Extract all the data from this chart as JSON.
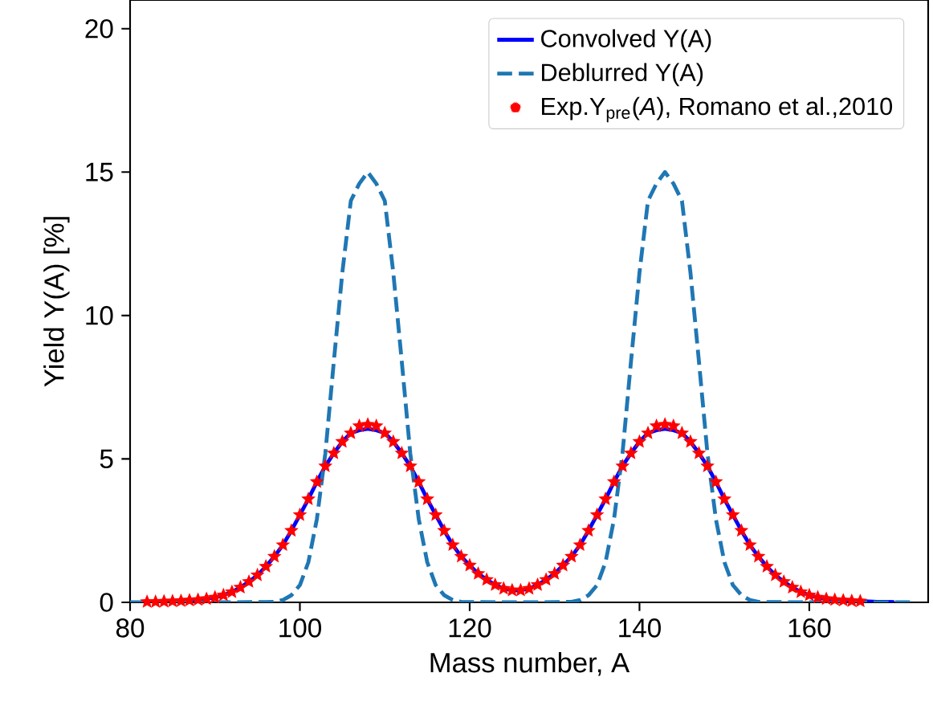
{
  "chart_data": {
    "type": "line",
    "xlabel": "Mass number, A",
    "ylabel": "Yield Y(A) [%]",
    "xlim": [
      80,
      174
    ],
    "ylim": [
      0,
      21
    ],
    "xticks": [
      80,
      100,
      120,
      140,
      160
    ],
    "yticks": [
      0,
      5,
      10,
      15,
      20
    ],
    "legend": "top right",
    "series": [
      {
        "name": "Convolved Y(A)",
        "color": "#0000ff",
        "line_style": "solid",
        "marker": "none",
        "x": [
          86,
          87,
          88,
          89,
          90,
          91,
          92,
          93,
          94,
          95,
          96,
          97,
          98,
          99,
          100,
          101,
          102,
          103,
          104,
          105,
          106,
          107,
          108,
          109,
          110,
          111,
          112,
          113,
          114,
          115,
          116,
          117,
          118,
          119,
          120,
          121,
          122,
          123,
          124,
          125,
          126,
          127,
          128,
          129,
          130,
          131,
          132,
          133,
          134,
          135,
          136,
          137,
          138,
          139,
          140,
          141,
          142,
          143,
          144,
          145,
          146,
          147,
          148,
          149,
          150,
          151,
          152,
          153,
          154,
          155,
          156,
          157,
          158,
          159,
          160,
          161,
          162,
          163,
          164,
          165,
          166,
          167,
          168,
          169,
          170
        ],
        "values": [
          0.05,
          0.07,
          0.09,
          0.12,
          0.17,
          0.25,
          0.36,
          0.52,
          0.72,
          0.95,
          1.25,
          1.6,
          2.0,
          2.5,
          3.05,
          3.6,
          4.2,
          4.75,
          5.2,
          5.6,
          5.9,
          6.0,
          6.05,
          6.0,
          5.9,
          5.6,
          5.2,
          4.75,
          4.2,
          3.6,
          3.05,
          2.5,
          2.0,
          1.6,
          1.29,
          1.0,
          0.79,
          0.61,
          0.48,
          0.42,
          0.42,
          0.48,
          0.61,
          0.79,
          1.0,
          1.29,
          1.6,
          2.0,
          2.5,
          3.05,
          3.6,
          4.2,
          4.75,
          5.2,
          5.6,
          5.9,
          6.0,
          6.05,
          6.0,
          5.9,
          5.6,
          5.2,
          4.75,
          4.2,
          3.6,
          3.05,
          2.5,
          2.0,
          1.6,
          1.25,
          0.95,
          0.72,
          0.52,
          0.36,
          0.25,
          0.17,
          0.12,
          0.09,
          0.07,
          0.05,
          0.04,
          0.03,
          0.02,
          0.02,
          0.01
        ]
      },
      {
        "name": "Deblurred Y(A)",
        "color": "#1f77b4",
        "line_style": "dashed",
        "marker": "none",
        "x": [
          80,
          90,
          96,
          97,
          98,
          99,
          100,
          101,
          102,
          103,
          104,
          105,
          106,
          107,
          108,
          109,
          110,
          111,
          112,
          113,
          114,
          115,
          116,
          117,
          118,
          119,
          120,
          125,
          131,
          132,
          133,
          134,
          135,
          136,
          137,
          138,
          139,
          140,
          141,
          142,
          143,
          144,
          145,
          146,
          147,
          148,
          149,
          150,
          151,
          152,
          153,
          154,
          155,
          160,
          172
        ],
        "values": [
          0,
          0,
          0.01,
          0.02,
          0.08,
          0.25,
          0.6,
          1.4,
          2.9,
          5.2,
          8.4,
          11.5,
          14.0,
          14.6,
          15,
          14.6,
          14.0,
          11.5,
          8.4,
          5.2,
          2.9,
          1.4,
          0.6,
          0.25,
          0.08,
          0.02,
          0.01,
          0,
          0.01,
          0.02,
          0.08,
          0.25,
          0.6,
          1.4,
          2.9,
          5.2,
          8.4,
          11.5,
          14.0,
          14.6,
          15,
          14.6,
          14.0,
          11.5,
          8.4,
          5.2,
          2.9,
          1.4,
          0.6,
          0.25,
          0.08,
          0.02,
          0.01,
          0,
          0
        ]
      },
      {
        "name": "Exp.Y$_{pre}$(*A*), Romano et al.,2010",
        "type": "scatter",
        "color": "#ff0000",
        "marker": "star",
        "x": [
          82,
          83,
          84,
          85,
          86,
          87,
          88,
          89,
          90,
          91,
          92,
          93,
          94,
          95,
          96,
          97,
          98,
          99,
          100,
          101,
          102,
          103,
          104,
          105,
          106,
          107,
          108,
          109,
          110,
          111,
          112,
          113,
          114,
          115,
          116,
          117,
          118,
          119,
          120,
          121,
          122,
          123,
          124,
          125,
          126,
          127,
          128,
          129,
          130,
          131,
          132,
          133,
          134,
          135,
          136,
          137,
          138,
          139,
          140,
          141,
          142,
          143,
          144,
          145,
          146,
          147,
          148,
          149,
          150,
          151,
          152,
          153,
          154,
          155,
          156,
          157,
          158,
          159,
          160,
          161,
          162,
          163,
          164,
          165,
          166
        ],
        "values": [
          0.02,
          0.02,
          0.03,
          0.04,
          0.05,
          0.07,
          0.09,
          0.12,
          0.17,
          0.25,
          0.36,
          0.52,
          0.72,
          0.95,
          1.25,
          1.6,
          2.0,
          2.5,
          3.05,
          3.6,
          4.2,
          4.75,
          5.2,
          5.6,
          5.9,
          6.15,
          6.2,
          6.15,
          5.9,
          5.6,
          5.2,
          4.75,
          4.2,
          3.6,
          3.05,
          2.5,
          2.0,
          1.6,
          1.29,
          1.0,
          0.79,
          0.61,
          0.48,
          0.42,
          0.42,
          0.48,
          0.61,
          0.79,
          1.0,
          1.29,
          1.6,
          2.0,
          2.5,
          3.05,
          3.6,
          4.2,
          4.75,
          5.2,
          5.6,
          5.9,
          6.15,
          6.2,
          6.15,
          5.9,
          5.6,
          5.2,
          4.75,
          4.2,
          3.6,
          3.05,
          2.5,
          2.0,
          1.6,
          1.25,
          0.95,
          0.72,
          0.52,
          0.36,
          0.25,
          0.17,
          0.12,
          0.09,
          0.07,
          0.05,
          0.04
        ]
      }
    ]
  }
}
